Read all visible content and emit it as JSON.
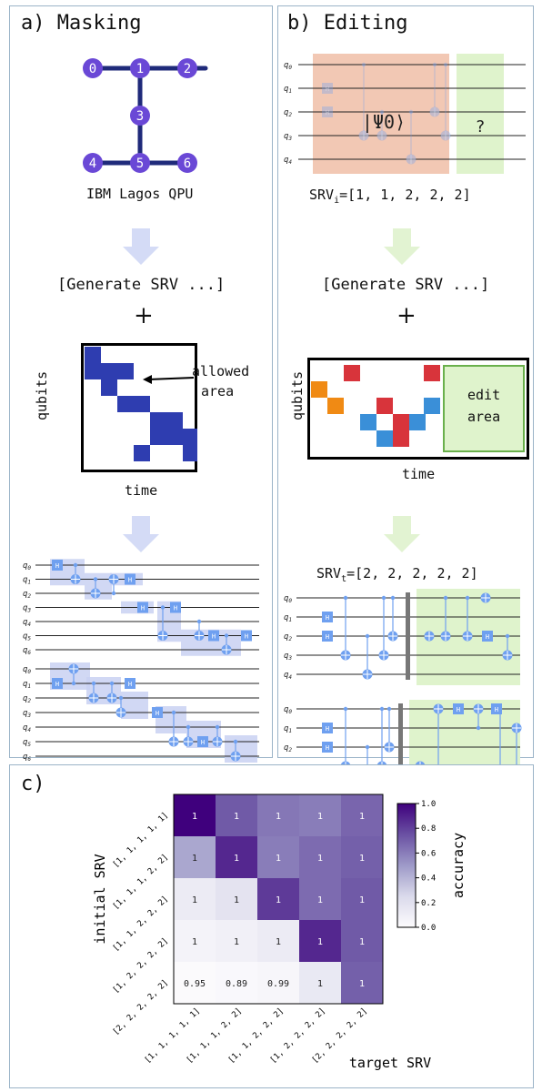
{
  "panel_a": {
    "title": "a) Masking",
    "qpu_label": "IBM Lagos QPU",
    "qubit_nodes": [
      "0",
      "1",
      "2",
      "3",
      "4",
      "5",
      "6"
    ],
    "generate_label": "[Generate SRV ...]",
    "plus": "+",
    "mask_ylabel": "qubits",
    "mask_xlabel": "time",
    "allowed_label_line1": "allowed",
    "allowed_label_line2": "area",
    "gate_h": "H",
    "qubit_labels_7": [
      "q0",
      "q1",
      "q2",
      "q3",
      "q4",
      "q5",
      "q6"
    ]
  },
  "panel_b": {
    "title": "b) Editing",
    "srv_initial": "SRV",
    "srv_initial_sub": "i",
    "srv_initial_value": "=[1, 1, 2, 2, 2]",
    "psi_label": "|Ψ0⟩",
    "question": "?",
    "generate_label": "[Generate SRV ...]",
    "plus": "+",
    "edit_ylabel": "qubits",
    "edit_xlabel": "time",
    "edit_area_line1": "edit",
    "edit_area_line2": "area",
    "srv_target": "SRV",
    "srv_target_sub": "t",
    "srv_target_value": "=[2, 2, 2, 2, 2]",
    "qubit_labels_5": [
      "q0",
      "q1",
      "q2",
      "q3",
      "q4"
    ]
  },
  "panel_c": {
    "title": "c)",
    "colorbar_label": "accuracy",
    "colorbar_ticks": [
      "1.0",
      "0.8",
      "0.6",
      "0.4",
      "0.2",
      "0.0"
    ],
    "colors": {
      "high": "#3f007d",
      "low": "#fcfbfd"
    }
  },
  "chart_data": {
    "type": "heatmap",
    "ylabel": "initial SRV",
    "xlabel": "target SRV",
    "row_labels": [
      "[1, 1, 1, 1, 1]",
      "[1, 1, 1, 2, 2]",
      "[1, 1, 2, 2, 2]",
      "[1, 2, 2, 2, 2]",
      "[2, 2, 2, 2, 2]"
    ],
    "col_labels": [
      "[1, 1, 1, 1, 1]",
      "[1, 1, 1, 2, 2]",
      "[1, 1, 2, 2, 2]",
      "[1, 2, 2, 2, 2]",
      "[2, 2, 2, 2, 2]"
    ],
    "cell_text": [
      [
        "1",
        "1",
        "1",
        "1",
        "1"
      ],
      [
        "1",
        "1",
        "1",
        "1",
        "1"
      ],
      [
        "1",
        "1",
        "1",
        "1",
        "1"
      ],
      [
        "1",
        "1",
        "1",
        "1",
        "1"
      ],
      [
        "0.95",
        "0.89",
        "0.99",
        "1",
        "1"
      ]
    ],
    "color_values": [
      [
        1.0,
        0.72,
        0.62,
        0.6,
        0.68
      ],
      [
        0.45,
        0.88,
        0.6,
        0.66,
        0.7
      ],
      [
        0.12,
        0.18,
        0.82,
        0.66,
        0.72
      ],
      [
        0.06,
        0.08,
        0.12,
        0.88,
        0.72
      ],
      [
        0.01,
        0.02,
        0.04,
        0.14,
        0.7
      ]
    ],
    "colorbar_range": [
      0.0,
      1.0
    ]
  }
}
